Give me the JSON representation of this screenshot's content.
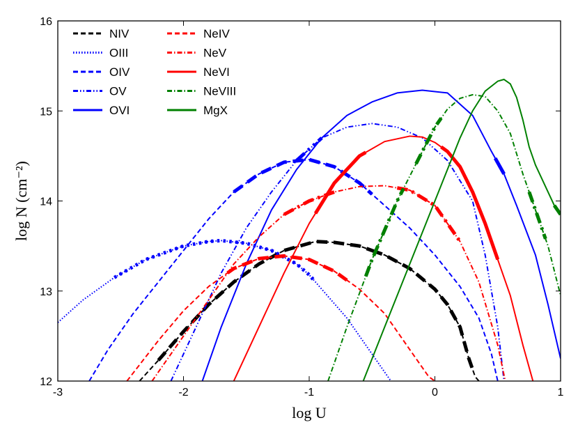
{
  "chart_data": {
    "type": "line",
    "xlabel": "log U",
    "ylabel": "log N (cm⁻²)",
    "xlim": [
      -3,
      1
    ],
    "ylim": [
      12,
      16
    ],
    "xticks": [
      -3,
      -2,
      -1,
      0,
      1
    ],
    "yticks": [
      12,
      13,
      14,
      15,
      16
    ],
    "xtick_labels": [
      "-3",
      "-2",
      "-1",
      "0",
      "1"
    ],
    "ytick_labels": [
      "12",
      "13",
      "14",
      "15",
      "16"
    ],
    "legend_position": "top-left",
    "series": [
      {
        "name": "NIV",
        "color": "#000000",
        "style": "dashed",
        "x": [
          -2.35,
          -2.2,
          -2.0,
          -1.8,
          -1.6,
          -1.4,
          -1.2,
          -1.0,
          -0.95,
          -0.8,
          -0.6,
          -0.4,
          -0.2,
          0.0,
          0.1,
          0.2,
          0.27,
          0.32,
          0.35
        ],
        "y": [
          12.0,
          12.23,
          12.55,
          12.85,
          13.1,
          13.3,
          13.45,
          13.53,
          13.55,
          13.54,
          13.5,
          13.4,
          13.25,
          13.02,
          12.85,
          12.6,
          12.25,
          12.05,
          12.0
        ],
        "bold_ranges": [
          [
            -2.2,
            -0.5
          ],
          [
            -0.5,
            0.3
          ]
        ]
      },
      {
        "name": "OIII",
        "color": "#0000ff",
        "style": "dotted",
        "x": [
          -3.0,
          -2.8,
          -2.55,
          -2.3,
          -2.0,
          -1.8,
          -1.7,
          -1.5,
          -1.3,
          -1.1,
          -1.0,
          -0.9,
          -0.7,
          -0.5,
          -0.35
        ],
        "y": [
          12.65,
          12.9,
          13.15,
          13.35,
          13.5,
          13.55,
          13.56,
          13.53,
          13.45,
          13.3,
          13.18,
          13.02,
          12.7,
          12.3,
          12.0
        ],
        "bold_ranges": [
          [
            -2.55,
            -0.95
          ]
        ]
      },
      {
        "name": "OIV",
        "color": "#0000ff",
        "style": "dashed",
        "x": [
          -2.75,
          -2.6,
          -2.4,
          -2.2,
          -2.0,
          -1.8,
          -1.6,
          -1.4,
          -1.2,
          -1.0,
          -0.8,
          -0.6,
          -0.4,
          -0.2,
          0.0,
          0.2,
          0.35,
          0.45,
          0.5
        ],
        "y": [
          12.0,
          12.35,
          12.75,
          13.1,
          13.45,
          13.8,
          14.1,
          14.3,
          14.43,
          14.46,
          14.38,
          14.2,
          13.95,
          13.7,
          13.4,
          13.05,
          12.7,
          12.3,
          12.0
        ],
        "bold_ranges": [
          [
            -1.6,
            -0.5
          ]
        ]
      },
      {
        "name": "OV",
        "color": "#0000ff",
        "style": "dashdot2",
        "x": [
          -2.1,
          -1.9,
          -1.7,
          -1.5,
          -1.3,
          -1.1,
          -0.9,
          -0.7,
          -0.5,
          -0.3,
          -0.1,
          0.1,
          0.3,
          0.4,
          0.5,
          0.55
        ],
        "y": [
          12.0,
          12.6,
          13.2,
          13.7,
          14.1,
          14.45,
          14.7,
          14.82,
          14.86,
          14.82,
          14.7,
          14.45,
          14.0,
          13.4,
          12.6,
          12.0
        ],
        "bold_ranges": [
          [
            -1.1,
            -0.9
          ]
        ]
      },
      {
        "name": "OVI",
        "color": "#0000ff",
        "style": "solid",
        "x": [
          -1.85,
          -1.7,
          -1.5,
          -1.3,
          -1.1,
          -0.9,
          -0.7,
          -0.5,
          -0.3,
          -0.1,
          0.1,
          0.3,
          0.45,
          0.55,
          0.65,
          0.8,
          0.9,
          1.0
        ],
        "y": [
          12.0,
          12.6,
          13.3,
          13.9,
          14.35,
          14.7,
          14.95,
          15.1,
          15.2,
          15.23,
          15.2,
          14.95,
          14.55,
          14.3,
          13.95,
          13.4,
          12.85,
          12.25
        ],
        "bold_ranges": [
          [
            0.48,
            0.55
          ]
        ]
      },
      {
        "name": "NeIV",
        "color": "#ff0000",
        "style": "dashed",
        "x": [
          -2.45,
          -2.2,
          -2.0,
          -1.8,
          -1.6,
          -1.4,
          -1.2,
          -1.0,
          -0.8,
          -0.6,
          -0.4,
          -0.2,
          -0.05,
          0.0
        ],
        "y": [
          12.0,
          12.45,
          12.78,
          13.05,
          13.25,
          13.36,
          13.39,
          13.35,
          13.22,
          13.02,
          12.75,
          12.35,
          12.05,
          12.0
        ],
        "bold_ranges": [
          [
            -1.65,
            -0.7
          ]
        ]
      },
      {
        "name": "NeV",
        "color": "#ff0000",
        "style": "dashdot",
        "x": [
          -2.25,
          -2.0,
          -1.8,
          -1.6,
          -1.4,
          -1.2,
          -1.0,
          -0.8,
          -0.6,
          -0.4,
          -0.2,
          0.0,
          0.2,
          0.35,
          0.5,
          0.56
        ],
        "y": [
          12.0,
          12.5,
          12.9,
          13.3,
          13.6,
          13.85,
          14.0,
          14.1,
          14.16,
          14.17,
          14.12,
          13.95,
          13.55,
          13.1,
          12.4,
          12.0
        ],
        "bold_ranges": [
          [
            -1.2,
            -0.8
          ],
          [
            -0.3,
            0.2
          ]
        ]
      },
      {
        "name": "NeVI",
        "color": "#ff0000",
        "style": "solid",
        "x": [
          -1.6,
          -1.4,
          -1.2,
          -1.0,
          -0.8,
          -0.6,
          -0.4,
          -0.2,
          -0.1,
          0.0,
          0.1,
          0.2,
          0.3,
          0.4,
          0.5,
          0.6,
          0.7,
          0.78
        ],
        "y": [
          12.0,
          12.6,
          13.2,
          13.75,
          14.2,
          14.5,
          14.66,
          14.72,
          14.71,
          14.65,
          14.55,
          14.38,
          14.1,
          13.75,
          13.35,
          12.95,
          12.4,
          12.0
        ],
        "bold_ranges": [
          [
            -0.95,
            -0.55
          ],
          [
            0.05,
            0.5
          ]
        ]
      },
      {
        "name": "NeVIII",
        "color": "#008000",
        "style": "dashdot",
        "x": [
          -0.85,
          -0.7,
          -0.5,
          -0.3,
          -0.1,
          0.0,
          0.1,
          0.2,
          0.3,
          0.4,
          0.5,
          0.6,
          0.7,
          0.8,
          0.9,
          1.0
        ],
        "y": [
          12.0,
          12.6,
          13.35,
          14.0,
          14.55,
          14.82,
          15.02,
          15.14,
          15.18,
          15.16,
          15.0,
          14.75,
          14.3,
          13.9,
          13.5,
          12.95
        ],
        "bold_ranges": [
          [
            -0.55,
            -0.25
          ],
          [
            -0.15,
            0.05
          ],
          [
            0.75,
            0.88
          ]
        ]
      },
      {
        "name": "MgX",
        "color": "#008000",
        "style": "solid",
        "x": [
          -0.57,
          -0.4,
          -0.2,
          0.0,
          0.1,
          0.2,
          0.3,
          0.4,
          0.5,
          0.55,
          0.6,
          0.65,
          0.7,
          0.75,
          0.8,
          0.9,
          0.95,
          1.0
        ],
        "y": [
          12.0,
          12.6,
          13.3,
          14.0,
          14.35,
          14.7,
          15.0,
          15.22,
          15.33,
          15.35,
          15.3,
          15.15,
          14.9,
          14.6,
          14.4,
          14.1,
          13.95,
          13.85
        ],
        "bold_ranges": [
          [
            0.95,
            1.0
          ]
        ]
      }
    ]
  }
}
